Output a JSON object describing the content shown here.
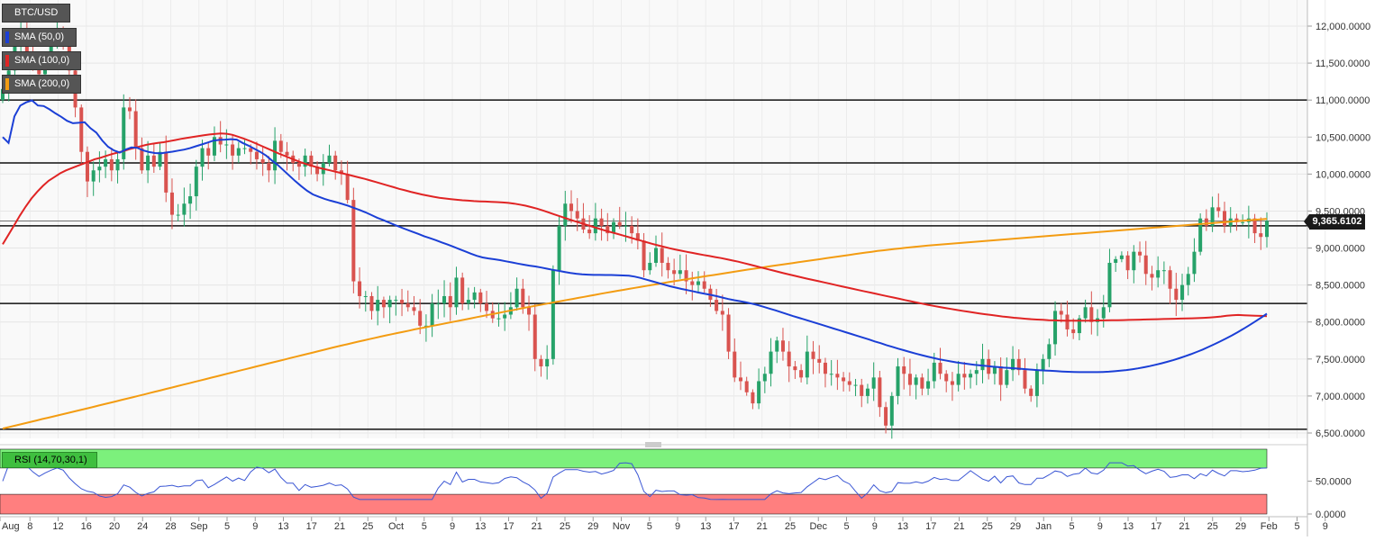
{
  "chart_data": {
    "type": "candlestick",
    "symbol": "BTC/USD",
    "indicators": [
      {
        "name": "SMA (50,0)",
        "color": "#1b3fd6"
      },
      {
        "name": "SMA (100,0)",
        "color": "#e02424"
      },
      {
        "name": "SMA (200,0)",
        "color": "#f39c12"
      }
    ],
    "y_axis": {
      "ticks": [
        "12,000.0000",
        "11,500.0000",
        "11,000.0000",
        "10,500.0000",
        "10,000.0000",
        "9,500.0000",
        "9,000.0000",
        "8,500.0000",
        "8,000.0000",
        "7,500.0000",
        "7,000.0000",
        "6,500.0000"
      ],
      "range": [
        6450,
        12300
      ]
    },
    "x_axis": {
      "ticks": [
        "Aug",
        "8",
        "12",
        "16",
        "20",
        "24",
        "28",
        "Sep",
        "5",
        "9",
        "13",
        "17",
        "21",
        "25",
        "Oct",
        "5",
        "9",
        "13",
        "17",
        "21",
        "25",
        "29",
        "Nov",
        "5",
        "9",
        "13",
        "17",
        "21",
        "25",
        "Dec",
        "5",
        "9",
        "13",
        "17",
        "21",
        "25",
        "29",
        "Jan",
        "5",
        "9",
        "13",
        "17",
        "21",
        "25",
        "29",
        "Feb",
        "5",
        "9"
      ]
    },
    "current_price": "9,365.6102",
    "horizontal_levels": [
      11000,
      10150,
      9300,
      8250,
      6550
    ],
    "bull_color": "#26a269",
    "bear_color": "#d9534f",
    "closes": [
      11150,
      11400,
      11750,
      11950,
      11650,
      11500,
      11350,
      11550,
      11750,
      11950,
      11850,
      11400,
      10900,
      10300,
      9900,
      10050,
      10100,
      10200,
      10050,
      10200,
      10900,
      10850,
      10350,
      10050,
      10250,
      10100,
      10300,
      9750,
      9450,
      9450,
      9600,
      9700,
      10100,
      10350,
      10250,
      10500,
      10400,
      10400,
      10250,
      10350,
      10350,
      10300,
      10200,
      10150,
      10050,
      10450,
      10300,
      10250,
      10150,
      10100,
      10250,
      10100,
      10000,
      10150,
      10250,
      10050,
      10000,
      9650,
      8550,
      8350,
      8350,
      8150,
      8300,
      8200,
      8300,
      8300,
      8250,
      8200,
      8150,
      7950,
      7950,
      8250,
      8250,
      8350,
      8200,
      8600,
      8250,
      8300,
      8400,
      8250,
      8150,
      8050,
      8050,
      8100,
      8200,
      8450,
      8200,
      8100,
      7500,
      7400,
      7500,
      8700,
      9300,
      9600,
      9500,
      9400,
      9250,
      9200,
      9400,
      9300,
      9200,
      9350,
      9300,
      9300,
      9200,
      9100,
      8700,
      8800,
      9000,
      8800,
      8700,
      8650,
      8700,
      8550,
      8500,
      8550,
      8450,
      8300,
      8150,
      8100,
      7600,
      7250,
      7200,
      7050,
      6900,
      7200,
      7300,
      7600,
      7750,
      7600,
      7400,
      7350,
      7250,
      7600,
      7500,
      7450,
      7300,
      7300,
      7250,
      7200,
      7150,
      7150,
      7000,
      7100,
      7250,
      6850,
      6600,
      7000,
      7400,
      7300,
      7150,
      7250,
      7100,
      7200,
      7450,
      7300,
      7200,
      7150,
      7300,
      7250,
      7300,
      7350,
      7500,
      7300,
      7400,
      7150,
      7350,
      7500,
      7350,
      7100,
      7000,
      7350,
      7500,
      7700,
      8150,
      8100,
      7900,
      7850,
      8050,
      8200,
      8000,
      8050,
      8200,
      8800,
      8850,
      8900,
      8700,
      8950,
      8900,
      8650,
      8600,
      8700,
      8700,
      8450,
      8300,
      8500,
      8650,
      8950,
      9400,
      9300,
      9550,
      9500,
      9300,
      9400,
      9350,
      9350,
      9400,
      9200,
      9150,
      9366
    ],
    "sma50": [
      10500,
      10420,
      10780,
      10925,
      10969,
      10996,
      10927,
      10920,
      10875,
      10821,
      10774,
      10720,
      10687,
      10693,
      10700,
      10620,
      10560,
      10455,
      10370,
      10320,
      10290,
      10330,
      10360,
      10355,
      10320,
      10298,
      10284,
      10280,
      10292,
      10303,
      10317,
      10330,
      10350,
      10376,
      10400,
      10426,
      10452,
      10462,
      10465,
      10472,
      10465,
      10420,
      10384,
      10342,
      10300,
      10250,
      10183,
      10123,
      10050,
      9976,
      9903,
      9836,
      9775,
      9725,
      9693,
      9665,
      9640,
      9620,
      9597,
      9573,
      9543,
      9514,
      9482,
      9446,
      9410,
      9379,
      9345,
      9312,
      9281,
      9250,
      9221,
      9191,
      9160,
      9133,
      9106,
      9076,
      9048,
      9017,
      8986,
      8955,
      8924,
      8895,
      8873,
      8860,
      8849,
      8836,
      8820,
      8806,
      8790,
      8776,
      8762,
      8751,
      8737,
      8721,
      8705,
      8691,
      8677,
      8664,
      8653,
      8645,
      8640,
      8637,
      8637,
      8636,
      8635,
      8633,
      8630,
      8626,
      8614,
      8595,
      8572,
      8550,
      8528,
      8505,
      8484,
      8465,
      8447,
      8431,
      8414,
      8397,
      8381,
      8366,
      8349,
      8330,
      8311,
      8295,
      8281,
      8266,
      8249,
      8229,
      8206,
      8182,
      8159,
      8133,
      8108,
      8081,
      8057,
      8034,
      8010,
      7986,
      7961,
      7937,
      7912,
      7888,
      7863,
      7838,
      7813,
      7788,
      7764,
      7738,
      7714,
      7688,
      7664,
      7640,
      7618,
      7595,
      7573,
      7552,
      7533,
      7515,
      7497,
      7482,
      7467,
      7454,
      7443,
      7432,
      7422,
      7414,
      7406,
      7398,
      7391,
      7384,
      7378,
      7372,
      7366,
      7360,
      7354,
      7349,
      7345,
      7341,
      7336,
      7331,
      7328,
      7325,
      7323,
      7322,
      7322,
      7323,
      7325,
      7329,
      7335,
      7342,
      7351,
      7362,
      7374,
      7388,
      7404,
      7422,
      7442,
      7463,
      7485,
      7510,
      7537,
      7565,
      7595,
      7627,
      7662,
      7698,
      7736,
      7776,
      7818,
      7862,
      7908,
      7956,
      8006,
      8058,
      8112
    ],
    "sma100": [
      9050,
      9180,
      9310,
      9440,
      9560,
      9670,
      9760,
      9840,
      9910,
      9960,
      10010,
      10050,
      10080,
      10110,
      10140,
      10170,
      10200,
      10220,
      10245,
      10270,
      10290,
      10310,
      10335,
      10355,
      10375,
      10395,
      10410,
      10420,
      10430,
      10445,
      10460,
      10475,
      10488,
      10500,
      10512,
      10524,
      10535,
      10543,
      10550,
      10545,
      10530,
      10505,
      10478,
      10448,
      10416,
      10382,
      10347,
      10313,
      10280,
      10248,
      10216,
      10186,
      10157,
      10130,
      10107,
      10085,
      10067,
      10050,
      10030,
      10012,
      9993,
      9974,
      9955,
      9935,
      9913,
      9891,
      9868,
      9845,
      9823,
      9800,
      9780,
      9760,
      9741,
      9723,
      9707,
      9693,
      9680,
      9670,
      9661,
      9653,
      9646,
      9640,
      9635,
      9631,
      9628,
      9625,
      9621,
      9616,
      9610,
      9600,
      9587,
      9572,
      9553,
      9532,
      9508,
      9482,
      9455,
      9429,
      9402,
      9376,
      9352,
      9328,
      9303,
      9280,
      9256,
      9233,
      9211,
      9190,
      9168,
      9146,
      9124,
      9102,
      9080,
      9058,
      9037,
      9017,
      8998,
      8981,
      8965,
      8950,
      8935,
      8920,
      8906,
      8892,
      8878,
      8864,
      8848,
      8832,
      8815,
      8796,
      8777,
      8757,
      8737,
      8717,
      8697,
      8678,
      8659,
      8640,
      8622,
      8604,
      8586,
      8569,
      8551,
      8534,
      8517,
      8499,
      8482,
      8465,
      8448,
      8431,
      8414,
      8398,
      8381,
      8364,
      8347,
      8331,
      8314,
      8297,
      8281,
      8264,
      8248,
      8233,
      8218,
      8204,
      8190,
      8177,
      8164,
      8151,
      8139,
      8128,
      8116,
      8105,
      8095,
      8085,
      8075,
      8066,
      8058,
      8051,
      8044,
      8038,
      8033,
      8029,
      8025,
      8022,
      8020,
      8018,
      8017,
      8017,
      8018,
      8019,
      8020,
      8021,
      8022,
      8023,
      8024,
      8026,
      8028,
      8030,
      8032,
      8034,
      8036,
      8038,
      8040,
      8042,
      8044,
      8046,
      8048,
      8050,
      8053,
      8056,
      8061,
      8067,
      8075,
      8085,
      8092,
      8095,
      8091,
      8088,
      8085,
      8083,
      8080
    ],
    "sma200": [
      6560,
      6578,
      6596,
      6614,
      6633,
      6651,
      6669,
      6688,
      6706,
      6724,
      6742,
      6761,
      6779,
      6797,
      6815,
      6834,
      6852,
      6871,
      6889,
      6908,
      6926,
      6945,
      6964,
      6982,
      7001,
      7020,
      7039,
      7058,
      7077,
      7096,
      7115,
      7134,
      7153,
      7172,
      7191,
      7210,
      7229,
      7248,
      7267,
      7286,
      7305,
      7324,
      7343,
      7362,
      7381,
      7400,
      7419,
      7438,
      7456,
      7475,
      7494,
      7513,
      7532,
      7551,
      7569,
      7588,
      7607,
      7626,
      7645,
      7663,
      7681,
      7699,
      7717,
      7735,
      7752,
      7769,
      7786,
      7803,
      7820,
      7836,
      7852,
      7868,
      7884,
      7900,
      7915,
      7930,
      7945,
      7960,
      7975,
      7990,
      8005,
      8020,
      8035,
      8050,
      8066,
      8081,
      8096,
      8110,
      8125,
      8140,
      8155,
      8170,
      8185,
      8200,
      8214,
      8228,
      8242,
      8256,
      8270,
      8284,
      8298,
      8312,
      8326,
      8340,
      8354,
      8368,
      8382,
      8396,
      8409,
      8422,
      8435,
      8448,
      8461,
      8474,
      8487,
      8500,
      8513,
      8526,
      8539,
      8552,
      8564,
      8576,
      8588,
      8600,
      8612,
      8624,
      8636,
      8648,
      8660,
      8672,
      8684,
      8696,
      8708,
      8720,
      8731,
      8742,
      8753,
      8764,
      8775,
      8786,
      8797,
      8808,
      8819,
      8830,
      8841,
      8852,
      8863,
      8874,
      8885,
      8896,
      8907,
      8918,
      8929,
      8940,
      8950,
      8960,
      8969,
      8978,
      8987,
      8995,
      9003,
      9011,
      9019,
      9026,
      9033,
      9040,
      9047,
      9053,
      9059,
      9065,
      9071,
      9077,
      9083,
      9089,
      9095,
      9101,
      9107,
      9113,
      9119,
      9125,
      9131,
      9137,
      9143,
      9149,
      9155,
      9161,
      9167,
      9173,
      9179,
      9185,
      9191,
      9197,
      9203,
      9209,
      9215,
      9221,
      9227,
      9233,
      9239,
      9245,
      9251,
      9257,
      9263,
      9269,
      9275,
      9281,
      9287,
      9293,
      9299,
      9305,
      9311,
      9317,
      9323,
      9329,
      9335,
      9341,
      9347,
      9353,
      9359,
      9365,
      9371,
      9377,
      9383,
      9389,
      9395
    ],
    "rsi": {
      "label": "RSI (14,70,30,1)",
      "ticks": [
        "50.0000",
        "0.0000"
      ],
      "upper_zone_color": "#7cf07c",
      "lower_zone_color": "#ff7f7f",
      "line_color": "#3a56d4"
    }
  }
}
